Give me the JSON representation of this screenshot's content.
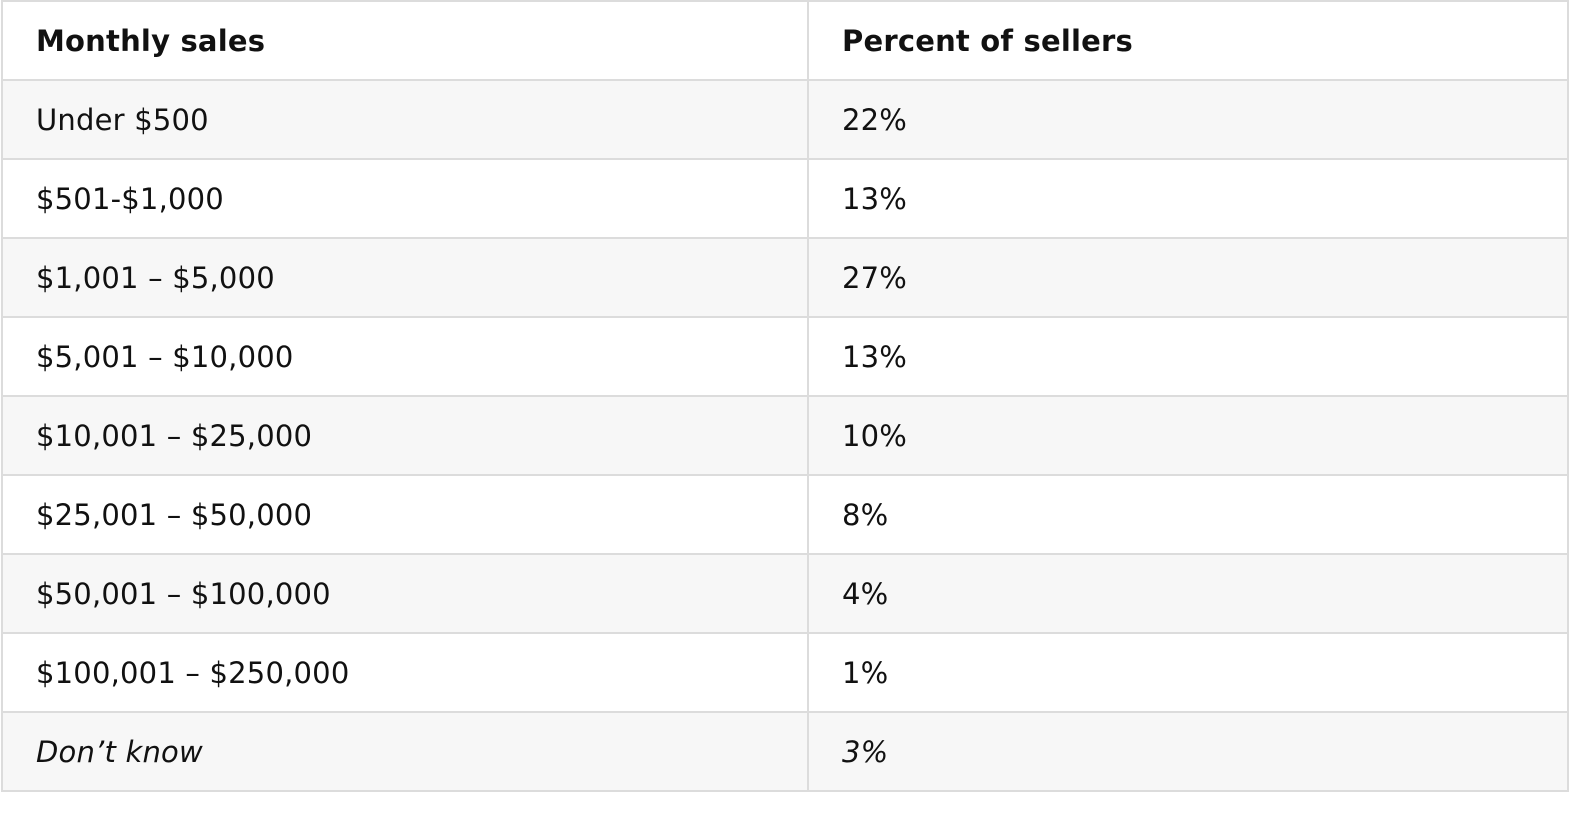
{
  "table": {
    "headers": {
      "col1": "Monthly sales",
      "col2": "Percent of sellers"
    },
    "rows": [
      {
        "range": "Under $500",
        "percent": "22%"
      },
      {
        "range": "$501-$1,000",
        "percent": "13%"
      },
      {
        "range": "$1,001 – $5,000",
        "percent": "27%"
      },
      {
        "range": "$5,001 – $10,000",
        "percent": "13%"
      },
      {
        "range": "$10,001 – $25,000",
        "percent": "10%"
      },
      {
        "range": "$25,001 – $50,000",
        "percent": "8%"
      },
      {
        "range": "$50,001 – $100,000",
        "percent": "4%"
      },
      {
        "range": "$100,001 – $250,000",
        "percent": "1%"
      },
      {
        "range": "Don’t know",
        "percent": "3%"
      }
    ]
  }
}
